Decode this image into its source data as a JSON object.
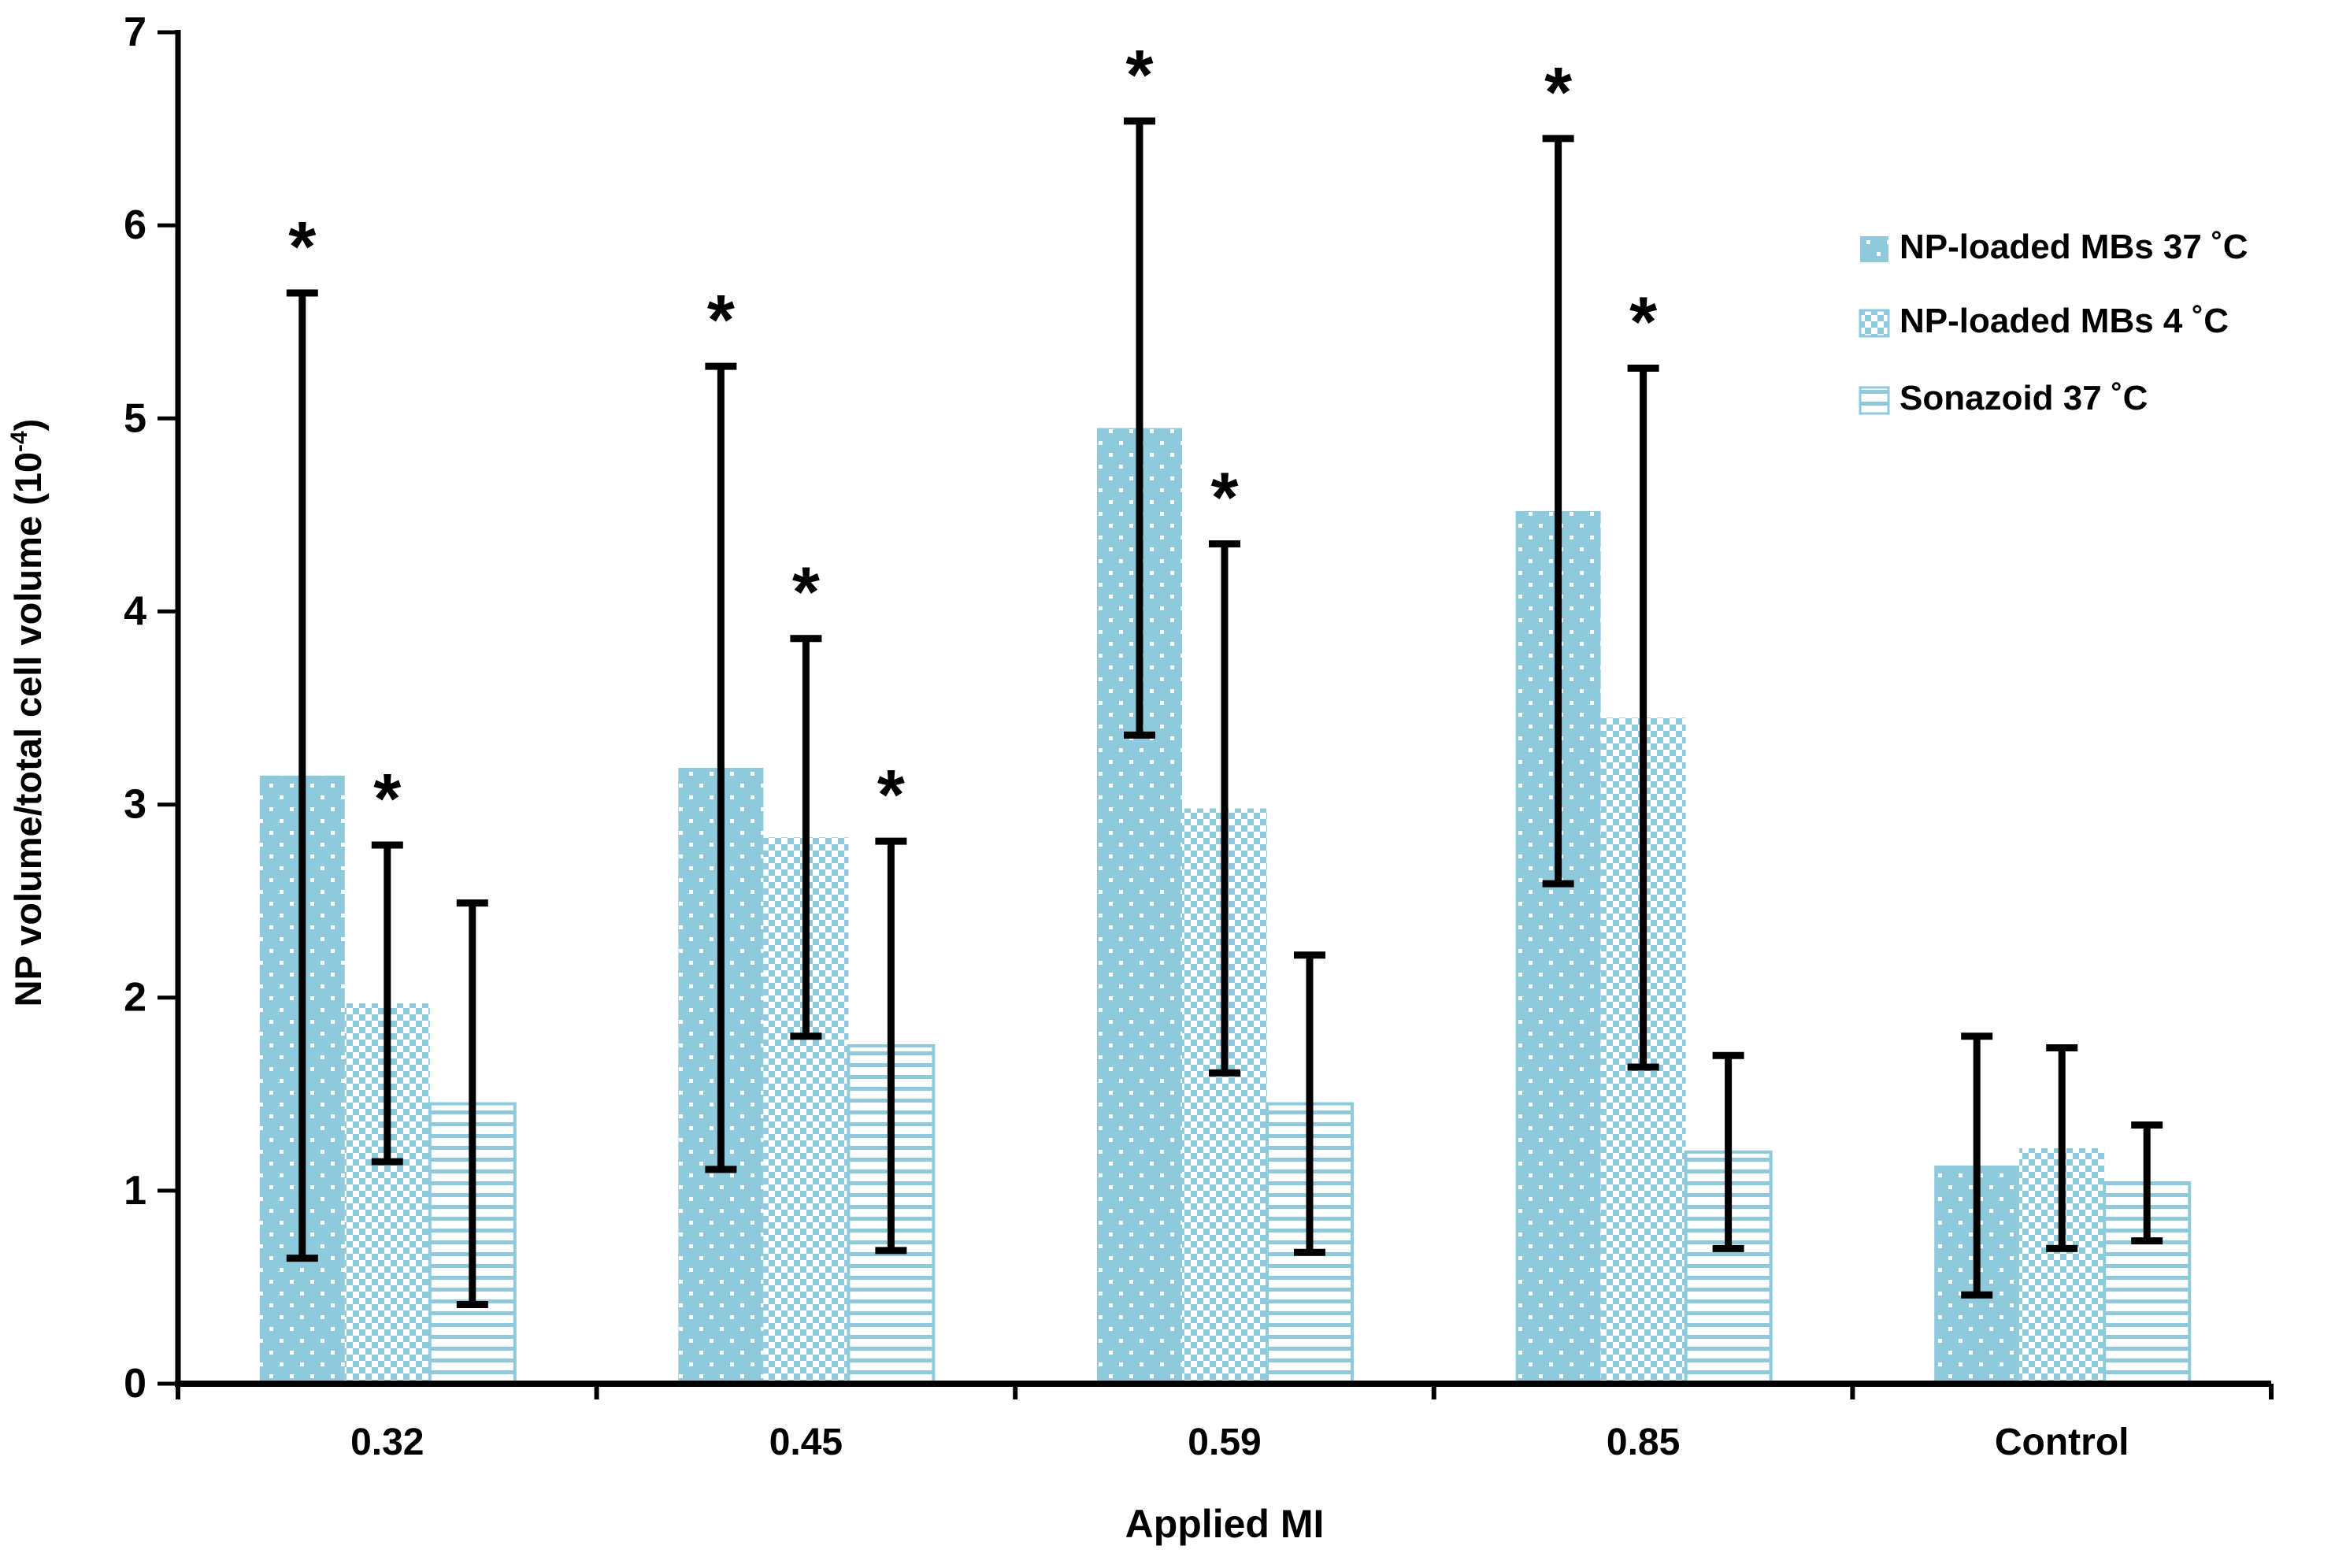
{
  "figure": {
    "background": "#ffffff",
    "sig_marker": "*"
  },
  "chart_data": {
    "type": "bar",
    "title": "",
    "xlabel": "Applied MI",
    "ylabel": {
      "prefix": "NP volume/total cell volume (10",
      "superscript": "-4",
      "suffix": ")"
    },
    "categories": [
      "0.32",
      "0.45",
      "0.59",
      "0.85",
      "Control"
    ],
    "ylim": [
      0,
      7
    ],
    "yticks": [
      0,
      1,
      2,
      3,
      4,
      5,
      6,
      7
    ],
    "grid": false,
    "legend_position": "upper right",
    "colors": {
      "bar_blue": "#8ecadb",
      "axis": "#000000",
      "error_bar": "#000000",
      "text": "#000000"
    },
    "series": [
      {
        "name": "NP-loaded MBs 37 ˚C",
        "pattern": "dots",
        "values": [
          3.15,
          3.19,
          4.95,
          4.52,
          1.13
        ],
        "errors": [
          2.5,
          2.08,
          1.59,
          1.93,
          0.67
        ],
        "significant": [
          true,
          true,
          true,
          true,
          false
        ]
      },
      {
        "name": "NP-loaded MBs 4 ˚C",
        "pattern": "checker",
        "values": [
          1.97,
          2.83,
          2.98,
          3.45,
          1.22
        ],
        "errors": [
          0.82,
          1.03,
          1.37,
          1.81,
          0.52
        ],
        "significant": [
          true,
          true,
          true,
          true,
          false
        ]
      },
      {
        "name": "Sonazoid 37 ˚C",
        "pattern": "hlines",
        "values": [
          1.45,
          1.75,
          1.45,
          1.2,
          1.04
        ],
        "errors": [
          1.04,
          1.06,
          0.77,
          0.5,
          0.3
        ],
        "significant": [
          false,
          true,
          false,
          false,
          false
        ]
      }
    ]
  }
}
